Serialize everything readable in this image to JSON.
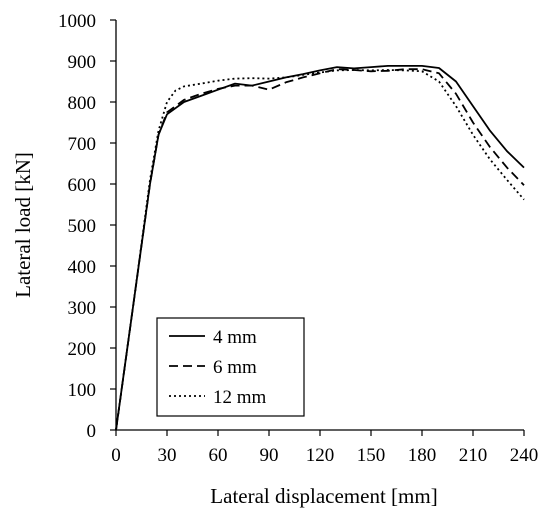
{
  "chart_data": {
    "type": "line",
    "title": "",
    "xlabel": "Lateral displacement [mm]",
    "ylabel": "Lateral load [kN]",
    "xlim": [
      0,
      240
    ],
    "ylim": [
      0,
      1000
    ],
    "xticks": [
      0,
      30,
      60,
      90,
      120,
      150,
      180,
      210,
      240
    ],
    "yticks": [
      0,
      100,
      200,
      300,
      400,
      500,
      600,
      700,
      800,
      900,
      1000
    ],
    "grid": false,
    "legend_position": "bottom-left",
    "series": [
      {
        "name": "4 mm",
        "style": "solid",
        "points": [
          [
            0,
            0
          ],
          [
            10,
            300
          ],
          [
            20,
            600
          ],
          [
            25,
            720
          ],
          [
            30,
            770
          ],
          [
            40,
            800
          ],
          [
            50,
            815
          ],
          [
            60,
            830
          ],
          [
            70,
            845
          ],
          [
            80,
            840
          ],
          [
            90,
            850
          ],
          [
            100,
            860
          ],
          [
            110,
            868
          ],
          [
            120,
            877
          ],
          [
            130,
            885
          ],
          [
            140,
            882
          ],
          [
            150,
            885
          ],
          [
            160,
            888
          ],
          [
            170,
            888
          ],
          [
            180,
            888
          ],
          [
            190,
            883
          ],
          [
            200,
            850
          ],
          [
            210,
            790
          ],
          [
            220,
            730
          ],
          [
            230,
            680
          ],
          [
            240,
            640
          ]
        ]
      },
      {
        "name": "6 mm",
        "style": "dashed",
        "points": [
          [
            0,
            0
          ],
          [
            10,
            300
          ],
          [
            20,
            600
          ],
          [
            25,
            720
          ],
          [
            30,
            775
          ],
          [
            40,
            805
          ],
          [
            50,
            820
          ],
          [
            60,
            832
          ],
          [
            70,
            840
          ],
          [
            80,
            840
          ],
          [
            90,
            830
          ],
          [
            100,
            848
          ],
          [
            110,
            860
          ],
          [
            120,
            870
          ],
          [
            130,
            880
          ],
          [
            140,
            878
          ],
          [
            150,
            875
          ],
          [
            160,
            876
          ],
          [
            170,
            880
          ],
          [
            180,
            880
          ],
          [
            190,
            870
          ],
          [
            200,
            820
          ],
          [
            210,
            750
          ],
          [
            220,
            690
          ],
          [
            230,
            640
          ],
          [
            240,
            597
          ]
        ]
      },
      {
        "name": "12 mm",
        "style": "dotted",
        "points": [
          [
            0,
            0
          ],
          [
            10,
            300
          ],
          [
            20,
            610
          ],
          [
            25,
            730
          ],
          [
            30,
            800
          ],
          [
            35,
            828
          ],
          [
            40,
            838
          ],
          [
            50,
            845
          ],
          [
            60,
            852
          ],
          [
            70,
            857
          ],
          [
            80,
            858
          ],
          [
            90,
            857
          ],
          [
            100,
            860
          ],
          [
            110,
            866
          ],
          [
            120,
            872
          ],
          [
            130,
            877
          ],
          [
            140,
            878
          ],
          [
            150,
            877
          ],
          [
            160,
            878
          ],
          [
            170,
            877
          ],
          [
            180,
            875
          ],
          [
            190,
            850
          ],
          [
            200,
            790
          ],
          [
            210,
            720
          ],
          [
            220,
            660
          ],
          [
            230,
            610
          ],
          [
            240,
            562
          ]
        ]
      }
    ]
  }
}
